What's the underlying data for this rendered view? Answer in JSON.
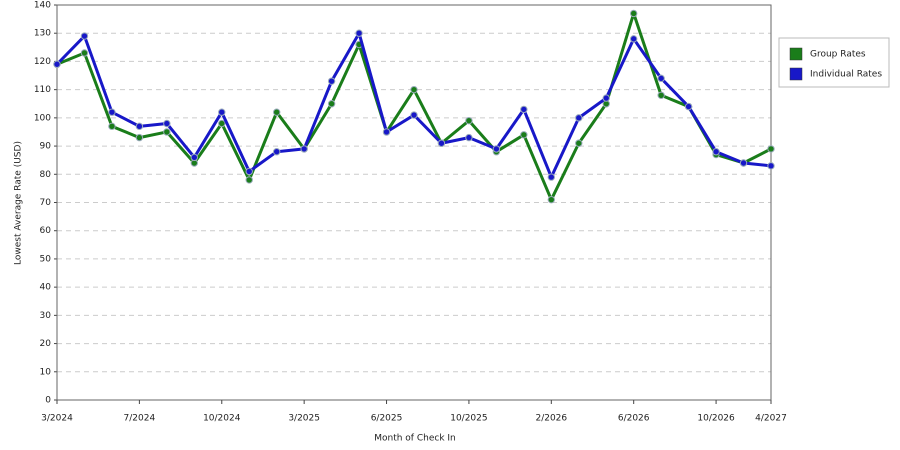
{
  "chart_data": {
    "type": "line",
    "x_label": "Month of Check In",
    "y_label": "Lowest Average Rate (USD)",
    "categories": [
      "3/2024",
      null,
      null,
      "7/2024",
      null,
      null,
      "10/2024",
      null,
      null,
      "3/2025",
      null,
      null,
      "6/2025",
      null,
      null,
      "10/2025",
      null,
      null,
      "2/2026",
      null,
      null,
      "6/2026",
      null,
      null,
      "10/2026",
      null,
      "4/2027"
    ],
    "series": [
      {
        "name": "Group Rates",
        "color": "#1a7d1a",
        "values": [
          119,
          123,
          97,
          93,
          95,
          84,
          98,
          78,
          102,
          89,
          105,
          126,
          95,
          110,
          91,
          99,
          88,
          94,
          71,
          91,
          105,
          137,
          108,
          104,
          87,
          84,
          89
        ]
      },
      {
        "name": "Individual Rates",
        "color": "#1818c8",
        "values": [
          119,
          129,
          102,
          97,
          98,
          86,
          102,
          81,
          88,
          89,
          113,
          130,
          95,
          101,
          91,
          93,
          89,
          103,
          79,
          100,
          107,
          128,
          114,
          104,
          88,
          84,
          83
        ]
      }
    ],
    "ylim": [
      0,
      140
    ],
    "yticks": [
      0,
      10,
      20,
      30,
      40,
      50,
      60,
      70,
      80,
      90,
      100,
      110,
      120,
      130,
      140
    ],
    "grid": true,
    "legend": "right"
  }
}
